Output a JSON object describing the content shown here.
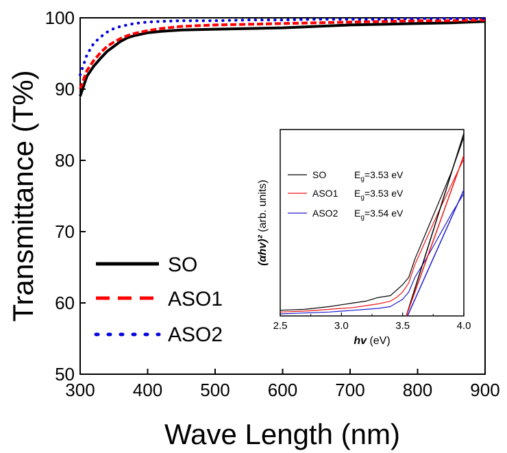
{
  "chart_data": [
    {
      "type": "line",
      "title": "",
      "xlabel": "Wave Length (nm)",
      "ylabel": "Transmittance (T%)",
      "xlim": [
        300,
        900
      ],
      "ylim": [
        50,
        100
      ],
      "xticks": [
        "300",
        "400",
        "500",
        "600",
        "700",
        "800",
        "900"
      ],
      "yticks": [
        "50",
        "60",
        "70",
        "80",
        "90",
        "100"
      ],
      "legend_position": "bottom-left",
      "series": [
        {
          "name": "SO",
          "color": "#000000",
          "style": "solid",
          "x": [
            300,
            310,
            320,
            330,
            340,
            350,
            360,
            370,
            380,
            400,
            420,
            450,
            500,
            550,
            600,
            650,
            700,
            750,
            800,
            850,
            900
          ],
          "y": [
            89.0,
            91.8,
            93.2,
            94.3,
            95.3,
            96.0,
            96.7,
            97.2,
            97.5,
            97.9,
            98.1,
            98.3,
            98.4,
            98.5,
            98.6,
            98.8,
            99.0,
            99.1,
            99.2,
            99.3,
            99.5
          ]
        },
        {
          "name": "ASO1",
          "color": "#ff0000",
          "style": "dashed",
          "x": [
            300,
            310,
            320,
            330,
            340,
            350,
            360,
            370,
            380,
            400,
            420,
            450,
            500,
            550,
            600,
            650,
            700,
            750,
            800,
            850,
            900
          ],
          "y": [
            90.0,
            92.6,
            94.0,
            95.1,
            96.0,
            96.6,
            97.1,
            97.5,
            97.8,
            98.2,
            98.5,
            98.8,
            99.0,
            99.1,
            99.2,
            99.3,
            99.4,
            99.5,
            99.6,
            99.6,
            99.7
          ]
        },
        {
          "name": "ASO2",
          "color": "#0000dd",
          "style": "dotted",
          "x": [
            300,
            310,
            320,
            330,
            340,
            350,
            360,
            370,
            380,
            400,
            420,
            450,
            500,
            550,
            600,
            650,
            700,
            750,
            800,
            850,
            900
          ],
          "y": [
            92.0,
            94.8,
            96.4,
            97.3,
            98.0,
            98.5,
            98.8,
            99.0,
            99.2,
            99.4,
            99.5,
            99.6,
            99.6,
            99.7,
            99.7,
            99.8,
            99.8,
            99.8,
            99.9,
            99.9,
            99.9
          ]
        }
      ]
    },
    {
      "type": "line",
      "title": "",
      "xlabel_main": "hv",
      "xlabel_unit": " (eV)",
      "ylabel_main": "(αhv)²",
      "ylabel_unit": " (arb. units)",
      "xlim": [
        2.5,
        4.0
      ],
      "ylim": [
        0,
        1
      ],
      "xticks": [
        "2.5",
        "3.0",
        "3.5",
        "4.0"
      ],
      "legend_position": "top-left",
      "series": [
        {
          "name": "SO",
          "eg_prefix": "E",
          "eg_sub": "g",
          "eg_value": "=3.53 eV",
          "color": "#000000",
          "x": [
            2.5,
            2.7,
            2.9,
            3.0,
            3.1,
            3.2,
            3.3,
            3.4,
            3.45,
            3.5,
            3.55,
            3.6,
            3.7,
            3.8,
            3.9,
            4.0
          ],
          "y": [
            0.02,
            0.025,
            0.04,
            0.05,
            0.06,
            0.07,
            0.09,
            0.1,
            0.13,
            0.16,
            0.2,
            0.3,
            0.46,
            0.62,
            0.78,
            0.97
          ]
        },
        {
          "name": "ASO1",
          "eg_prefix": "E",
          "eg_sub": "g",
          "eg_value": "=3.53 eV",
          "color": "#ee1111",
          "x": [
            2.5,
            2.7,
            2.9,
            3.0,
            3.1,
            3.2,
            3.3,
            3.4,
            3.45,
            3.5,
            3.55,
            3.6,
            3.7,
            3.8,
            3.9,
            4.0
          ],
          "y": [
            0.01,
            0.015,
            0.025,
            0.03,
            0.035,
            0.045,
            0.055,
            0.07,
            0.09,
            0.12,
            0.17,
            0.27,
            0.42,
            0.57,
            0.71,
            0.85
          ]
        },
        {
          "name": "ASO2",
          "eg_prefix": "E",
          "eg_sub": "g",
          "eg_value": "=3.54 eV",
          "color": "#1a1ad0",
          "x": [
            2.5,
            2.7,
            2.9,
            3.0,
            3.1,
            3.2,
            3.3,
            3.4,
            3.45,
            3.5,
            3.55,
            3.6,
            3.7,
            3.8,
            3.9,
            4.0
          ],
          "y": [
            0.0,
            0.005,
            0.01,
            0.015,
            0.02,
            0.025,
            0.03,
            0.04,
            0.06,
            0.08,
            0.12,
            0.2,
            0.31,
            0.43,
            0.55,
            0.66
          ]
        }
      ],
      "fits": [
        {
          "series": "SO",
          "x0": 3.53,
          "x1": 4.0,
          "y1": 0.99
        },
        {
          "series": "ASO1",
          "x0": 3.53,
          "x1": 4.0,
          "y1": 0.87
        },
        {
          "series": "ASO2",
          "x0": 3.54,
          "x1": 4.0,
          "y1": 0.68
        }
      ]
    }
  ]
}
